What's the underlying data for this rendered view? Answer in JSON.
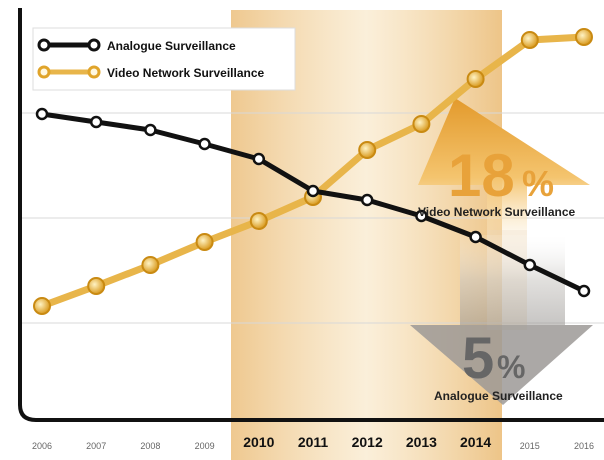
{
  "chart_data": {
    "type": "line",
    "categories": [
      "2006",
      "2007",
      "2008",
      "2009",
      "2010",
      "2011",
      "2012",
      "2013",
      "2014",
      "2015",
      "2016"
    ],
    "highlighted_categories": [
      "2010",
      "2011",
      "2012",
      "2013",
      "2014"
    ],
    "series": [
      {
        "name": "Analogue Surveillance",
        "color": "#111111",
        "values": [
          104,
          96,
          88,
          74,
          59,
          27,
          18,
          2,
          -19,
          -47,
          -73
        ]
      },
      {
        "name": "Video Network Surveillance",
        "color": "#e8b54a",
        "values": [
          -88,
          -68,
          -47,
          -24,
          -3,
          21,
          68,
          94,
          139,
          178,
          181
        ]
      }
    ],
    "grid": true,
    "legend_position": "top-left",
    "annotations": [
      {
        "value": "18",
        "symbol": "%",
        "label": "Video Network Surveillance",
        "color": "#e8a23a",
        "direction": "up"
      },
      {
        "value": "5",
        "symbol": "%",
        "label": "Analogue Surveillance",
        "color": "#888888",
        "direction": "down"
      }
    ]
  }
}
